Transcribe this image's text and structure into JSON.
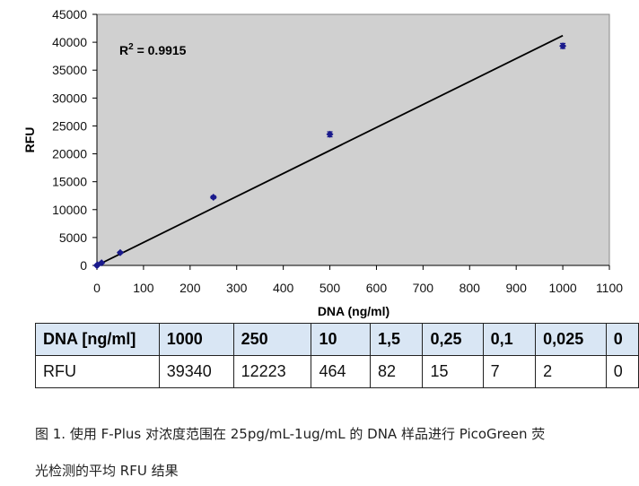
{
  "chart_data": {
    "type": "scatter",
    "xlabel": "DNA (ng/ml)",
    "ylabel": "RFU",
    "xlim": [
      0,
      1100
    ],
    "ylim": [
      0,
      45000
    ],
    "xticks": [
      0,
      100,
      200,
      300,
      400,
      500,
      600,
      700,
      800,
      900,
      1000,
      1100
    ],
    "yticks": [
      0,
      5000,
      10000,
      15000,
      20000,
      25000,
      30000,
      35000,
      40000,
      45000
    ],
    "points": [
      {
        "x": 0,
        "y": 0,
        "err": 0
      },
      {
        "x": 0.025,
        "y": 2,
        "err": 0
      },
      {
        "x": 0.1,
        "y": 7,
        "err": 0
      },
      {
        "x": 0.25,
        "y": 15,
        "err": 0
      },
      {
        "x": 1.5,
        "y": 82,
        "err": 0
      },
      {
        "x": 10,
        "y": 464,
        "err": 120
      },
      {
        "x": 50,
        "y": 2300,
        "err": 150
      },
      {
        "x": 250,
        "y": 12223,
        "err": 250
      },
      {
        "x": 500,
        "y": 23500,
        "err": 450
      },
      {
        "x": 1000,
        "y": 39340,
        "err": 450
      }
    ],
    "trendline": {
      "x": [
        0,
        1000
      ],
      "y": [
        0,
        41200
      ]
    },
    "annotation": {
      "text": "R",
      "sup": "2",
      "rest": " = 0.9915"
    },
    "grid": false,
    "plot_bg": "#d0d0d0",
    "marker_color": "#1a1a8c"
  },
  "table": {
    "header": [
      "DNA [ng/ml]",
      "1000",
      "250",
      "10",
      "1,5",
      "0,25",
      "0,1",
      "0,025",
      "0"
    ],
    "row": [
      "RFU",
      "39340",
      "12223",
      "464",
      "82",
      "15",
      "7",
      "2",
      "0"
    ]
  },
  "caption": {
    "line1": "图 1. 使用 F-Plus 对浓度范围在 25pg/mL-1ug/mL 的 DNA 样品进行 PicoGreen 荧",
    "line2": "光检测的平均 RFU 结果"
  }
}
